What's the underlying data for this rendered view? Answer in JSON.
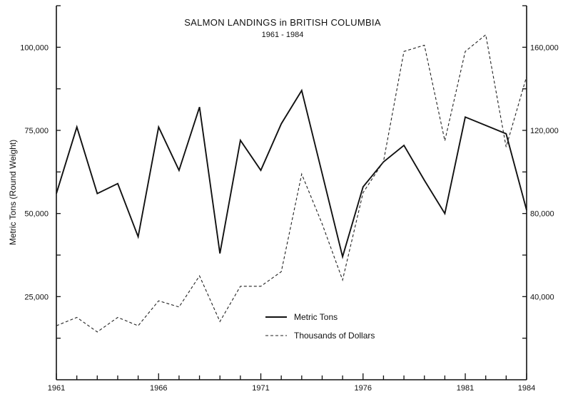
{
  "chart_data": {
    "type": "line",
    "title": "SALMON LANDINGS in BRITISH COLUMBIA",
    "subtitle": "1961 - 1984",
    "xlabel": "",
    "ylabel": "Metric Tons (Round Weight)",
    "y2label": "",
    "xlim": [
      1961,
      1984
    ],
    "ylim": [
      0,
      112500
    ],
    "y2lim": [
      0,
      180000
    ],
    "x_ticks": [
      1961,
      1966,
      1971,
      1976,
      1981,
      1984
    ],
    "x_tick_labels": [
      "1961",
      "1966",
      "1971",
      "1976",
      "1981",
      "1984"
    ],
    "y_ticks": [
      25000,
      50000,
      75000,
      100000
    ],
    "y_tick_labels": [
      "25,000",
      "50,000",
      "75,000",
      "100,000"
    ],
    "y2_ticks": [
      40000,
      80000,
      120000,
      160000
    ],
    "y2_tick_labels": [
      "40,000",
      "80,000",
      "120,000",
      "160,000"
    ],
    "legend_position": "lower-center",
    "grid": false,
    "series": [
      {
        "name": "Metric Tons",
        "axis": "left",
        "style": "solid",
        "x": [
          1961,
          1962,
          1963,
          1964,
          1965,
          1966,
          1967,
          1968,
          1969,
          1970,
          1971,
          1972,
          1973,
          1974,
          1975,
          1976,
          1977,
          1978,
          1979,
          1980,
          1981,
          1982,
          1983,
          1984
        ],
        "values": [
          56000,
          76000,
          56000,
          59000,
          43000,
          76000,
          63000,
          82000,
          38000,
          72000,
          63000,
          77000,
          87000,
          62000,
          37000,
          58000,
          65500,
          70500,
          60000,
          50000,
          79000,
          76500,
          74000,
          51000
        ]
      },
      {
        "name": "Thousands of Dollars",
        "axis": "right",
        "style": "dashed",
        "x": [
          1961,
          1962,
          1963,
          1964,
          1965,
          1966,
          1967,
          1968,
          1969,
          1970,
          1971,
          1972,
          1973,
          1974,
          1975,
          1976,
          1977,
          1978,
          1979,
          1980,
          1981,
          1982,
          1983,
          1984
        ],
        "values": [
          26000,
          30000,
          23000,
          30000,
          26000,
          38000,
          35000,
          50000,
          28000,
          45000,
          45000,
          52000,
          99000,
          75000,
          48000,
          90000,
          105000,
          158000,
          161000,
          115000,
          158000,
          166000,
          112000,
          146000
        ]
      }
    ]
  }
}
